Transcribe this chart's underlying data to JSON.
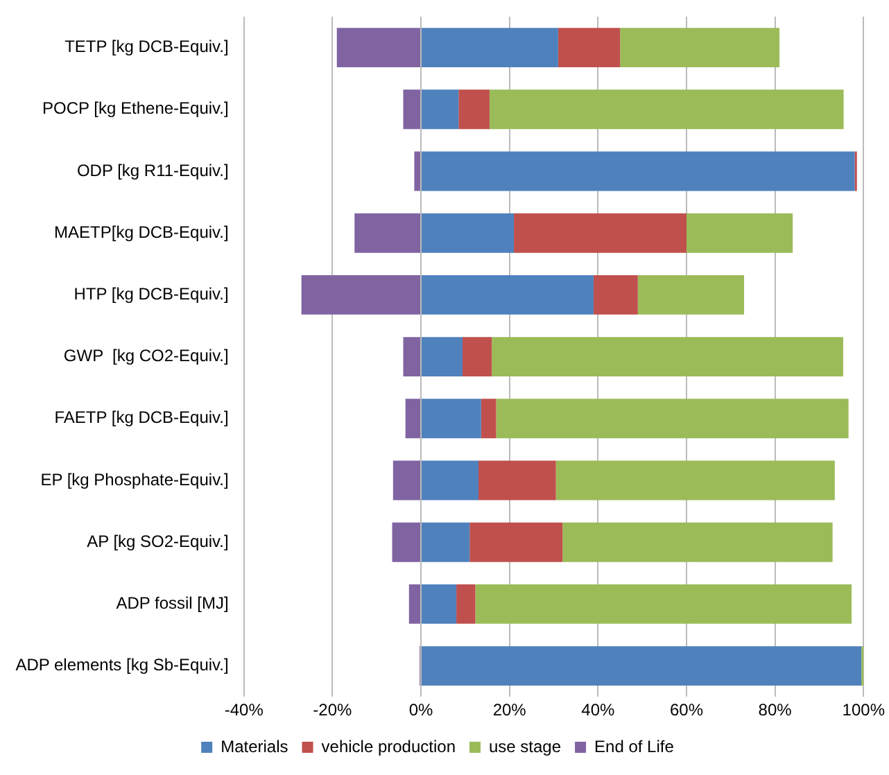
{
  "chart_data": {
    "type": "bar",
    "orientation": "horizontal",
    "stacked": true,
    "grid": "x",
    "legend": "bottom",
    "categories": [
      "TETP [kg DCB-Equiv.]",
      "POCP [kg Ethene-Equiv.]",
      "ODP [kg R11-Equiv.]",
      "MAETP[kg DCB-Equiv.]",
      "HTP [kg DCB-Equiv.]",
      "GWP  [kg CO2-Equiv.]",
      "FAETP [kg DCB-Equiv.]",
      "EP [kg Phosphate-Equiv.]",
      "AP [kg SO2-Equiv.]",
      "ADP fossil [MJ]",
      "ADP elements [kg Sb-Equiv.]"
    ],
    "series": [
      {
        "name": "Materials",
        "color": "#4f81bd",
        "values": [
          31,
          8.5,
          98,
          21,
          39,
          9.4,
          13.6,
          13,
          11,
          8,
          99.5
        ]
      },
      {
        "name": "vehicle production",
        "color": "#c0504d",
        "values": [
          14,
          7,
          0.5,
          39,
          10,
          6.6,
          3.4,
          17.5,
          21,
          4.3,
          0
        ]
      },
      {
        "name": "use stage",
        "color": "#9bbb59",
        "values": [
          36,
          80,
          0,
          24,
          24,
          79.4,
          79.6,
          63,
          61,
          85,
          0.5
        ]
      },
      {
        "name": "End of Life",
        "color": "#8064a2",
        "values": [
          -19,
          -4,
          -1.5,
          -15,
          -27,
          -4,
          -3.5,
          -6.3,
          -6.5,
          -2.7,
          -0.3
        ]
      }
    ],
    "xlim": [
      -40,
      100
    ],
    "xticks": [
      {
        "value": -40,
        "label": "-40%"
      },
      {
        "value": -20,
        "label": "-20%"
      },
      {
        "value": 0,
        "label": "0%"
      },
      {
        "value": 20,
        "label": "20%"
      },
      {
        "value": 40,
        "label": "40%"
      },
      {
        "value": 60,
        "label": "60%"
      },
      {
        "value": 80,
        "label": "80%"
      },
      {
        "value": 100,
        "label": "100%"
      }
    ]
  }
}
